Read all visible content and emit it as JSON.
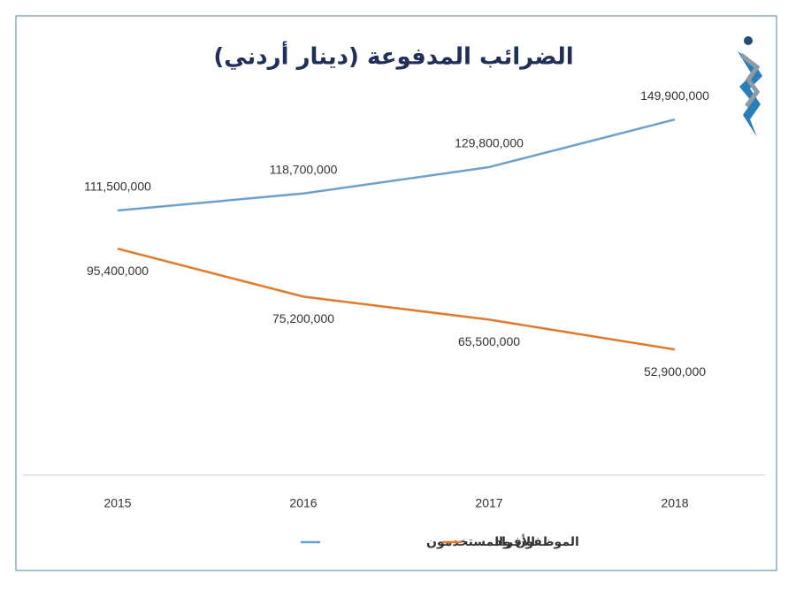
{
  "chart_data": {
    "type": "line",
    "title": "الضرائب المدفوعة (دينار أردني)",
    "categories": [
      "2015",
      "2016",
      "2017",
      "2018"
    ],
    "series": [
      {
        "name": "الموظفون والمستخدمون",
        "color": "#6f9fcb",
        "values": [
          111500000,
          118700000,
          129800000,
          149900000
        ],
        "value_labels": [
          "111,500,000",
          "118,700,000",
          "129,800,000",
          "149,900,000"
        ],
        "label_position": "above"
      },
      {
        "name": "الأفراد",
        "color": "#e07b2e",
        "values": [
          95400000,
          75200000,
          65500000,
          52900000
        ],
        "value_labels": [
          "95,400,000",
          "75,200,000",
          "65,500,000",
          "52,900,000"
        ],
        "label_position": "below"
      }
    ],
    "ylim": [
      0,
      160000000
    ]
  }
}
